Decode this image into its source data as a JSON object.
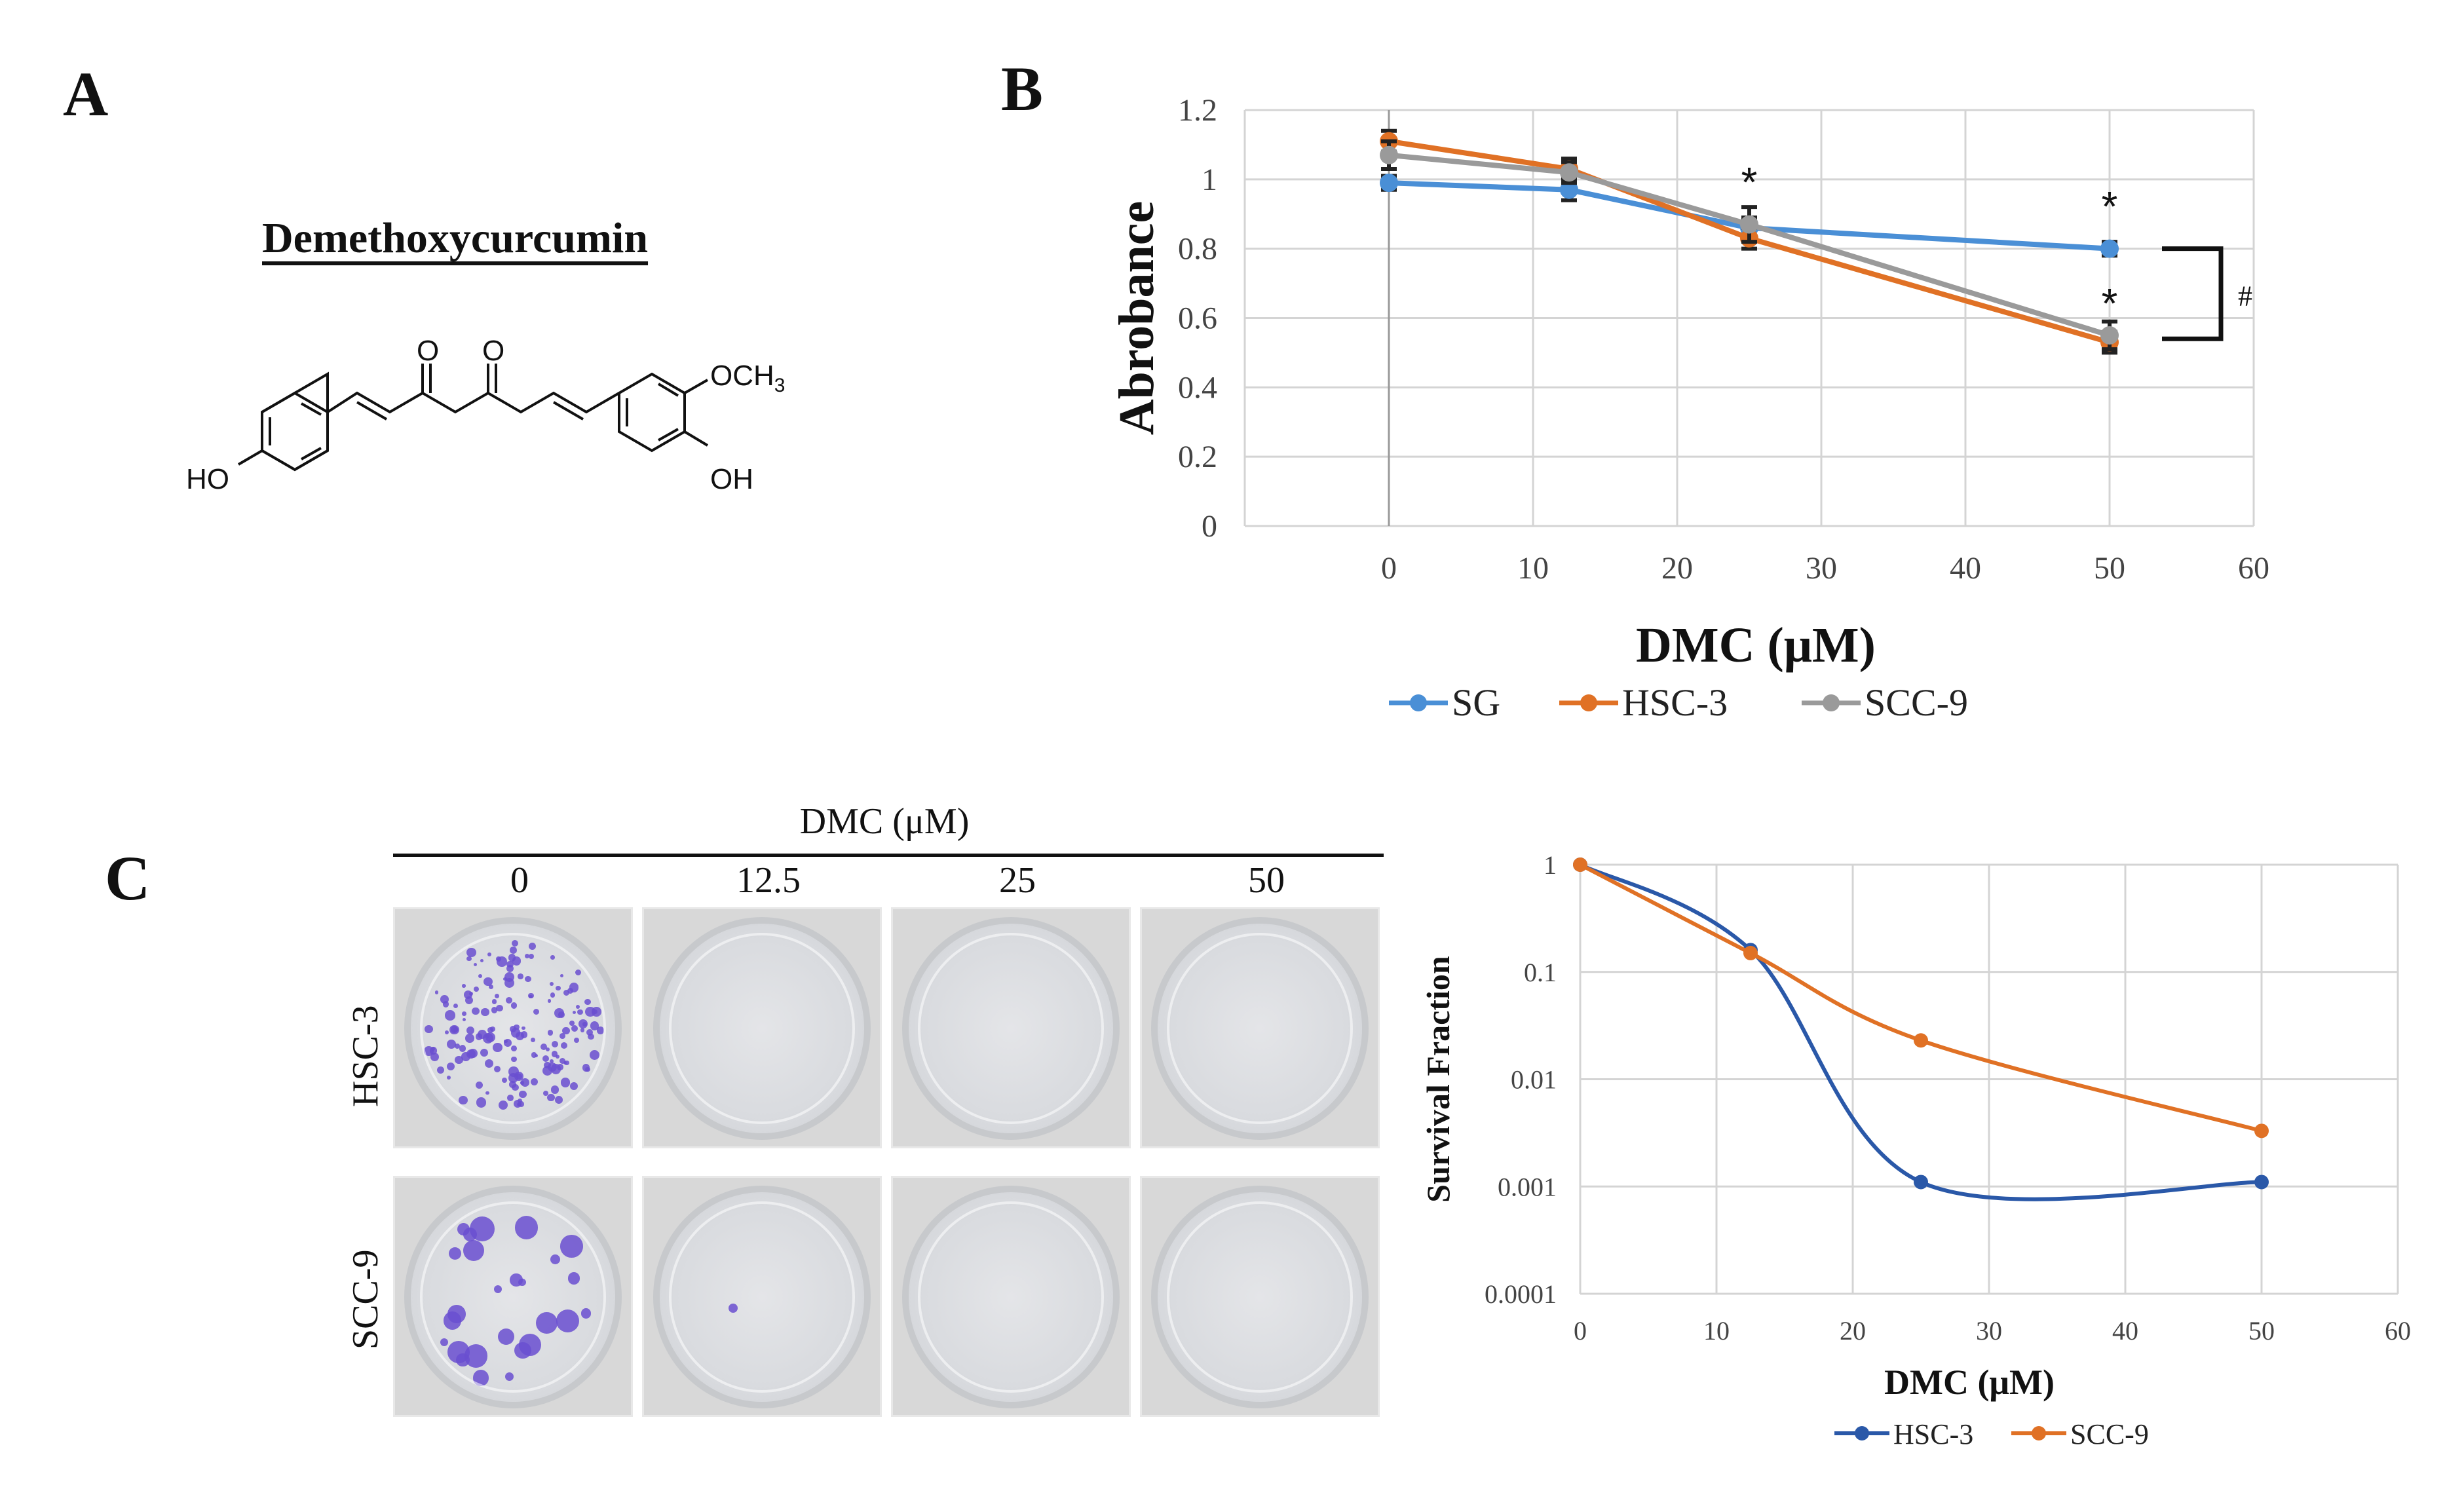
{
  "panels": {
    "a": "A",
    "b": "B",
    "c": "C"
  },
  "compound": {
    "name": "Demethoxycurcumin",
    "labels": {
      "o1": "O",
      "o2": "O",
      "ho": "HO",
      "och3": "OCH",
      "och3_sub": "3",
      "oh": "OH"
    }
  },
  "chart_data": [
    {
      "type": "line",
      "panel": "B",
      "title": "",
      "xlabel": "DMC (μM)",
      "ylabel": "Abrobance",
      "xlim": [
        -10,
        60
      ],
      "ylim": [
        0,
        1.2
      ],
      "xticks": [
        "0",
        "10",
        "20",
        "30",
        "40",
        "50",
        "60"
      ],
      "yticks": [
        "0",
        "0.2",
        "0.4",
        "0.6",
        "0.8",
        "1",
        "1.2"
      ],
      "x": [
        0,
        12.5,
        25,
        50
      ],
      "series": [
        {
          "name": "SG",
          "color": "#4a8fd6",
          "values": [
            0.99,
            0.97,
            0.86,
            0.8
          ],
          "errors": [
            0.02,
            0.03,
            0.03,
            0.02
          ]
        },
        {
          "name": "HSC-3",
          "color": "#e07125",
          "values": [
            1.11,
            1.03,
            0.83,
            0.53
          ],
          "errors": [
            0.03,
            0.03,
            0.03,
            0.03
          ]
        },
        {
          "name": "SCC-9",
          "color": "#9a9a9a",
          "values": [
            1.07,
            1.02,
            0.87,
            0.55
          ],
          "errors": [
            0.04,
            0.03,
            0.05,
            0.04
          ]
        }
      ],
      "annotations": {
        "star": "*",
        "hash": "#"
      }
    },
    {
      "type": "line",
      "panel": "C",
      "title": "",
      "xlabel": "DMC (μM)",
      "ylabel": "Survival  Fraction",
      "yscale": "log",
      "xlim": [
        0,
        60
      ],
      "ylim": [
        0.0001,
        1
      ],
      "xticks": [
        "0",
        "10",
        "20",
        "30",
        "40",
        "50",
        "60"
      ],
      "yticks": [
        "1",
        "0.1",
        "0.01",
        "0.001",
        "0.0001"
      ],
      "x": [
        0,
        12.5,
        25,
        50
      ],
      "series": [
        {
          "name": "HSC-3",
          "color": "#2a58a8",
          "values": [
            1,
            0.16,
            0.0011,
            0.0011
          ]
        },
        {
          "name": "SCC-9",
          "color": "#e07125",
          "values": [
            1,
            0.15,
            0.023,
            0.0033
          ]
        }
      ]
    }
  ],
  "clonogenic": {
    "header": "DMC (μM)",
    "concentrations": [
      "0",
      "12.5",
      "25",
      "50"
    ],
    "rows": [
      "HSC-3",
      "SCC-9"
    ]
  }
}
